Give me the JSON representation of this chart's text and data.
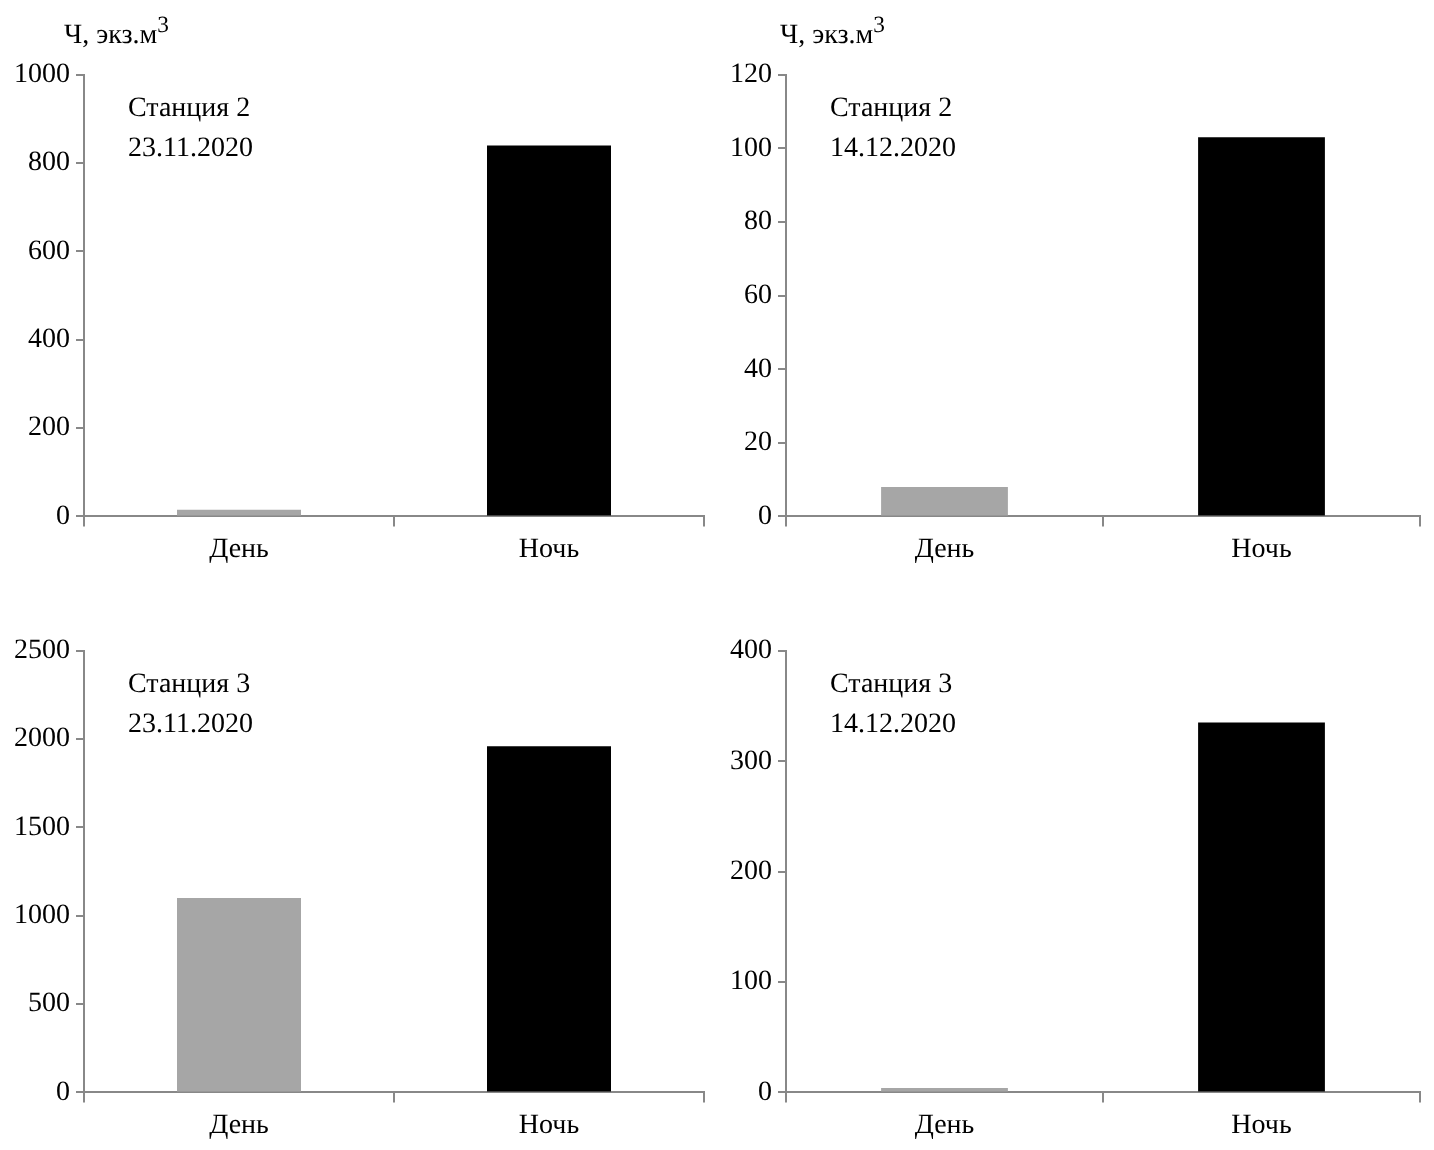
{
  "chart_data": [
    {
      "type": "bar",
      "ylabel": "Ч, экз.м$^{3}$",
      "annotations": [
        "Станция 2",
        "23.11.2020"
      ],
      "categories": [
        "День",
        "Ночь"
      ],
      "values": [
        15,
        840
      ],
      "colors": [
        "#a6a6a6",
        "#000000"
      ],
      "ylim": [
        0,
        1000
      ],
      "yticks": [
        0,
        200,
        400,
        600,
        800,
        1000
      ],
      "grid": false
    },
    {
      "type": "bar",
      "ylabel": "Ч, экз.м$^{3}$",
      "annotations": [
        "Станция 2",
        "14.12.2020"
      ],
      "categories": [
        "День",
        "Ночь"
      ],
      "values": [
        8,
        103
      ],
      "colors": [
        "#a6a6a6",
        "#000000"
      ],
      "ylim": [
        0,
        120
      ],
      "yticks": [
        0,
        20,
        40,
        60,
        80,
        100,
        120
      ],
      "grid": false
    },
    {
      "type": "bar",
      "annotations": [
        "Станция 3",
        "23.11.2020"
      ],
      "categories": [
        "День",
        "Ночь"
      ],
      "values": [
        1100,
        1960
      ],
      "colors": [
        "#a6a6a6",
        "#000000"
      ],
      "ylim": [
        0,
        2500
      ],
      "yticks": [
        0,
        500,
        1000,
        1500,
        2000,
        2500
      ],
      "grid": false
    },
    {
      "type": "bar",
      "annotations": [
        "Станция 3",
        "14.12.2020"
      ],
      "categories": [
        "День",
        "Ночь"
      ],
      "values": [
        4,
        335
      ],
      "colors": [
        "#a6a6a6",
        "#000000"
      ],
      "ylim": [
        0,
        400
      ],
      "yticks": [
        0,
        100,
        200,
        300,
        400
      ],
      "grid": false
    }
  ]
}
